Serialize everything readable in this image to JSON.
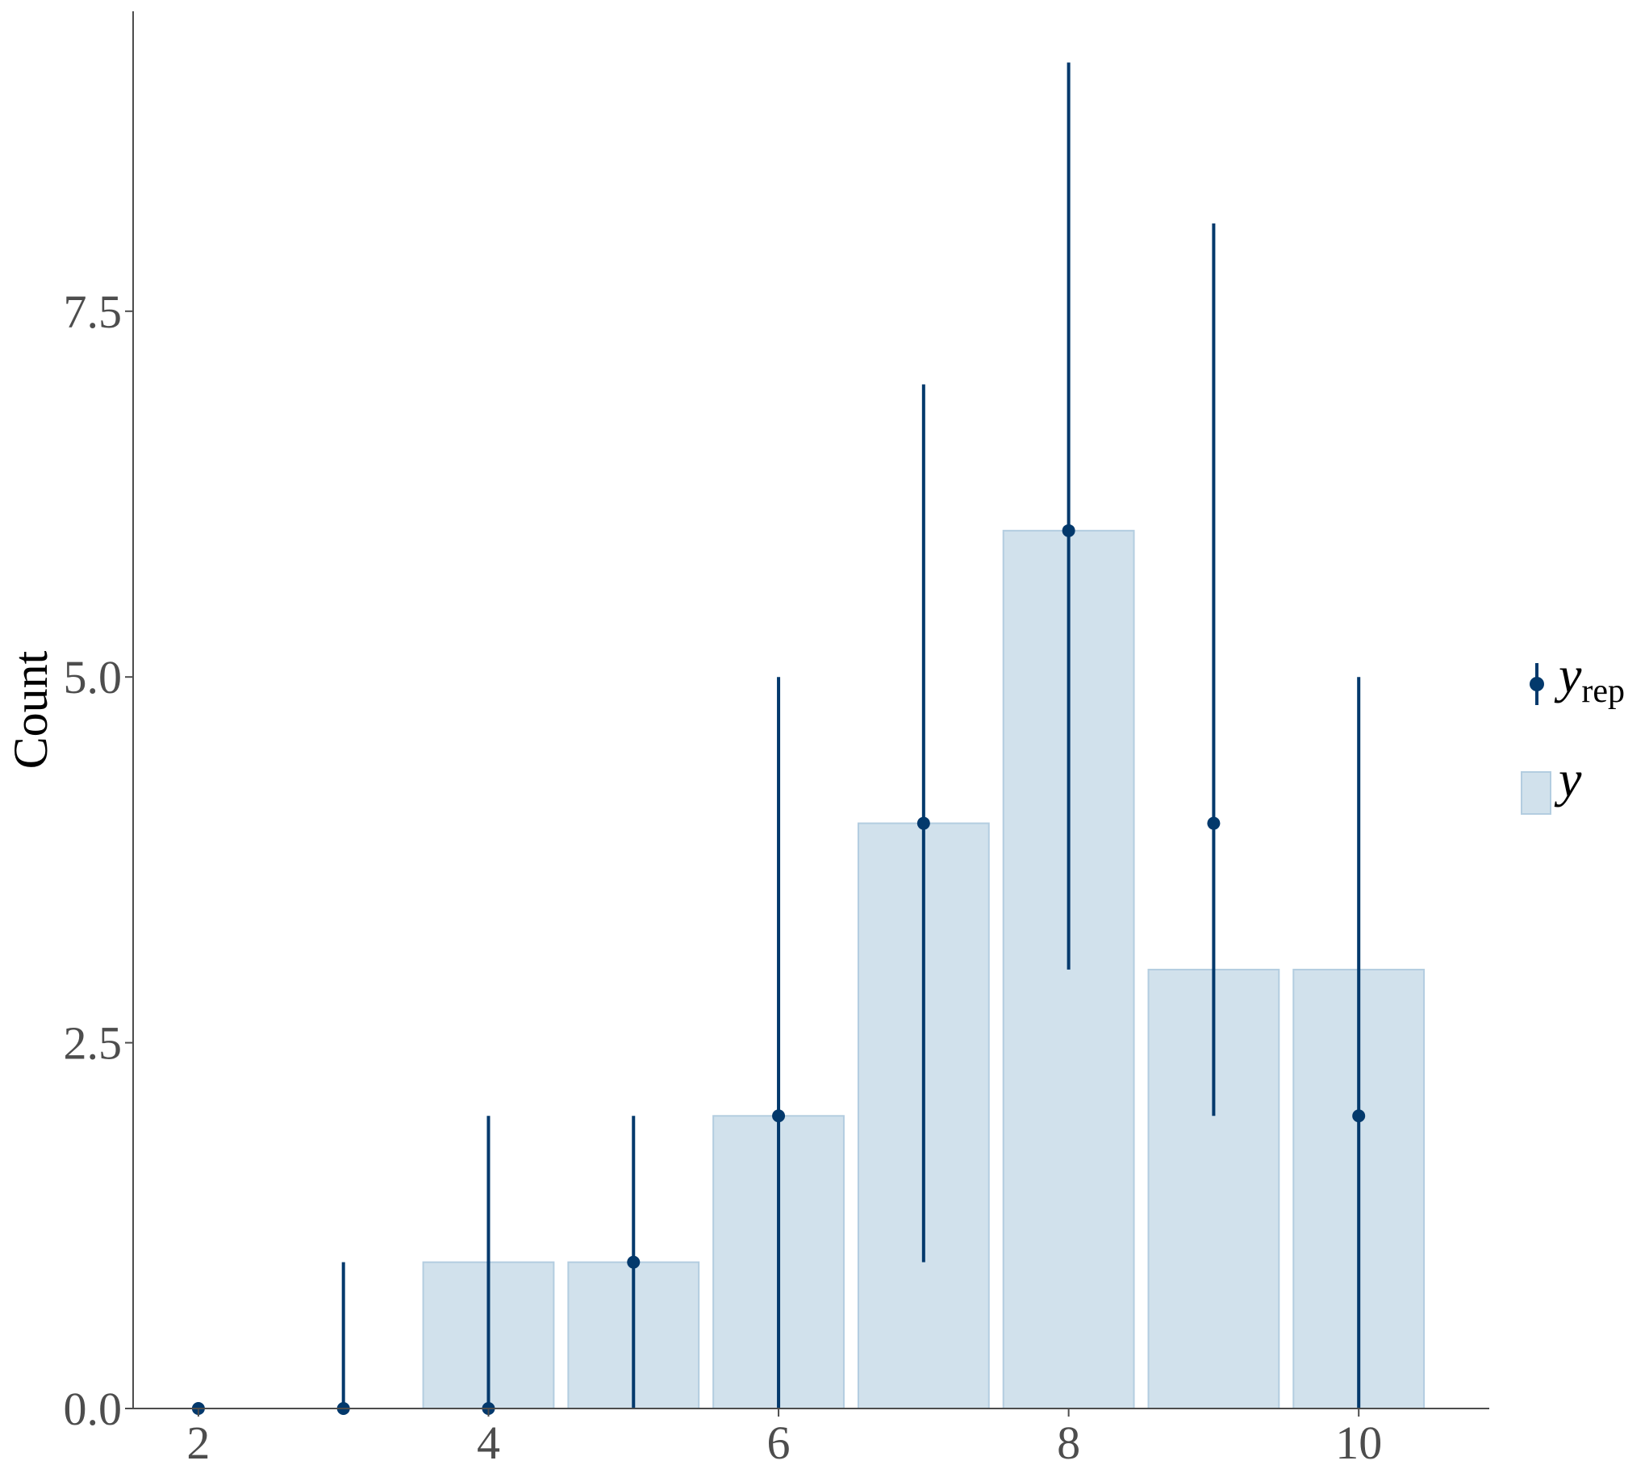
{
  "chart_data": {
    "type": "bar",
    "title": "",
    "xlabel": "",
    "ylabel": "Count",
    "xlim": [
      1.55,
      10.9
    ],
    "ylim": [
      0,
      9.55
    ],
    "x_ticks": [
      "2",
      "4",
      "6",
      "8",
      "10"
    ],
    "x_tick_values": [
      2,
      4,
      6,
      8,
      10
    ],
    "y_ticks": [
      "0.0",
      "2.5",
      "5.0",
      "7.5"
    ],
    "y_tick_values": [
      0,
      2.5,
      5,
      7.5
    ],
    "grid": false,
    "legend_position": "right",
    "legend": {
      "yrep_main": "y",
      "yrep_sub": "rep",
      "y_label": "y"
    },
    "series": [
      {
        "name": "y",
        "kind": "bar",
        "x": [
          2,
          3,
          4,
          5,
          6,
          7,
          8,
          9,
          10
        ],
        "values": [
          0,
          0,
          1,
          1,
          2,
          4,
          6,
          3,
          3
        ]
      },
      {
        "name": "y_rep",
        "kind": "pointrange",
        "x": [
          2,
          3,
          4,
          5,
          6,
          7,
          8,
          9,
          10
        ],
        "median": [
          0,
          0,
          0,
          1,
          2,
          4,
          6,
          4,
          2
        ],
        "lower": [
          0,
          0,
          0,
          0,
          0,
          1,
          3,
          2,
          0
        ],
        "upper": [
          0,
          1,
          2,
          2,
          5,
          7,
          9.2,
          8.1,
          5
        ]
      }
    ],
    "colors": {
      "bar_fill": "#d1e1ec",
      "bar_stroke": "#b3cde0",
      "point": "#03396c",
      "axis": "#4d4d4d"
    }
  }
}
